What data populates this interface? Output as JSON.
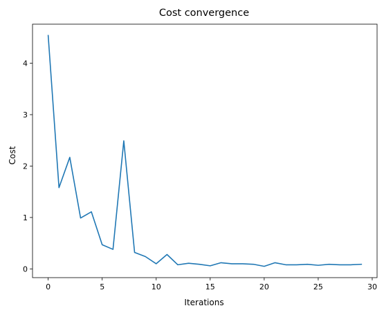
{
  "chart_data": {
    "type": "line",
    "title": "Cost convergence",
    "xlabel": "Iterations",
    "ylabel": "Cost",
    "xlim": [
      -1.45,
      30.45
    ],
    "ylim": [
      -0.17,
      4.76
    ],
    "xticks": [
      0,
      5,
      10,
      15,
      20,
      25,
      30
    ],
    "yticks": [
      0,
      1,
      2,
      3,
      4
    ],
    "grid": false,
    "series": [
      {
        "color": "#1f77b4",
        "x": [
          0,
          1,
          2,
          3,
          4,
          5,
          6,
          7,
          8,
          9,
          10,
          11,
          12,
          13,
          14,
          15,
          16,
          17,
          18,
          19,
          20,
          21,
          22,
          23,
          24,
          25,
          26,
          27,
          28,
          29
        ],
        "y": [
          4.54,
          1.58,
          2.17,
          0.99,
          1.11,
          0.47,
          0.38,
          2.49,
          0.32,
          0.24,
          0.1,
          0.28,
          0.08,
          0.11,
          0.09,
          0.06,
          0.12,
          0.1,
          0.1,
          0.09,
          0.05,
          0.12,
          0.08,
          0.08,
          0.09,
          0.07,
          0.09,
          0.08,
          0.08,
          0.09
        ]
      }
    ]
  }
}
